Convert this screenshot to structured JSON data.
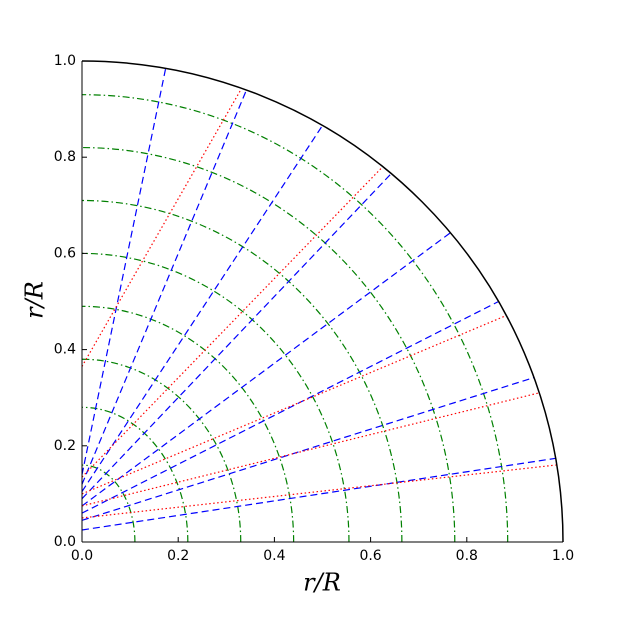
{
  "chart_data": {
    "type": "line",
    "xlabel": "r/R",
    "ylabel": "r/R",
    "xlim": [
      0,
      1
    ],
    "ylim": [
      0,
      1
    ],
    "xticks": [
      {
        "value": 0,
        "label": "0.0"
      },
      {
        "value": 0.2,
        "label": "0.2"
      },
      {
        "value": 0.4,
        "label": "0.4"
      },
      {
        "value": 0.6,
        "label": "0.6"
      },
      {
        "value": 0.8,
        "label": "0.8"
      },
      {
        "value": 1,
        "label": "1.0"
      }
    ],
    "yticks": [
      {
        "value": 0,
        "label": "0.0"
      },
      {
        "value": 0.2,
        "label": "0.2"
      },
      {
        "value": 0.4,
        "label": "0.4"
      },
      {
        "value": 0.6,
        "label": "0.6"
      },
      {
        "value": 0.8,
        "label": "0.8"
      },
      {
        "value": 1,
        "label": "1.0"
      }
    ],
    "boundary_radius": 1,
    "series": [
      {
        "color": "#0000ff",
        "style": "dashed",
        "x": [
          0,
          0.985
        ],
        "values": [
          0.025,
          0.174
        ]
      },
      {
        "color": "#0000ff",
        "style": "dashed",
        "x": [
          0,
          0.94
        ],
        "values": [
          0.045,
          0.342
        ]
      },
      {
        "color": "#0000ff",
        "style": "dashed",
        "x": [
          0,
          0.866
        ],
        "values": [
          0.06,
          0.5
        ]
      },
      {
        "color": "#0000ff",
        "style": "dashed",
        "x": [
          0,
          0.766
        ],
        "values": [
          0.075,
          0.643
        ]
      },
      {
        "color": "#0000ff",
        "style": "dashed",
        "x": [
          0,
          0.643
        ],
        "values": [
          0.09,
          0.766
        ]
      },
      {
        "color": "#0000ff",
        "style": "dashed",
        "x": [
          0,
          0.5
        ],
        "values": [
          0.105,
          0.866
        ]
      },
      {
        "color": "#0000ff",
        "style": "dashed",
        "x": [
          0,
          0.342
        ],
        "values": [
          0.12,
          0.94
        ]
      },
      {
        "color": "#0000ff",
        "style": "dashed",
        "x": [
          0,
          0.174
        ],
        "values": [
          0.14,
          0.985
        ]
      },
      {
        "color": "#ff0000",
        "style": "dotted",
        "x": [
          0,
          0.33
        ],
        "values": [
          0.365,
          0.94
        ]
      },
      {
        "color": "#ff0000",
        "style": "dotted",
        "x": [
          0,
          0.625
        ],
        "values": [
          0.135,
          0.78
        ]
      },
      {
        "color": "#ff0000",
        "style": "dotted",
        "x": [
          0,
          0.88
        ],
        "values": [
          0.1,
          0.47
        ]
      },
      {
        "color": "#ff0000",
        "style": "dotted",
        "x": [
          0,
          0.95
        ],
        "values": [
          0.075,
          0.31
        ]
      },
      {
        "color": "#ff0000",
        "style": "dotted",
        "x": [
          0,
          0.985
        ],
        "values": [
          0.05,
          0.16
        ]
      }
    ],
    "arcs": {
      "color": "#008000",
      "a": [
        0.11,
        0.22,
        0.33,
        0.44,
        0.555,
        0.665,
        0.775,
        0.885
      ],
      "b": [
        0.16,
        0.28,
        0.38,
        0.49,
        0.6,
        0.71,
        0.82,
        0.93
      ]
    }
  }
}
